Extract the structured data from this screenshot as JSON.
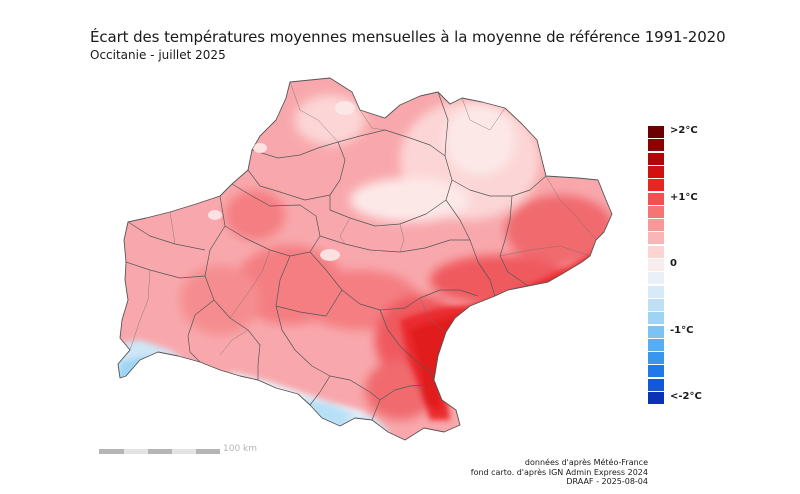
{
  "title": "Écart des températures moyennes mensuelles à la moyenne de référence 1991-2020",
  "subtitle": "Occitanie - juillet 2025",
  "legend": {
    "labels": [
      {
        "text": ">2°C",
        "step": 0
      },
      {
        "text": "+1°C",
        "step": 5
      },
      {
        "text": "0",
        "step": 10
      },
      {
        "text": "-1°C",
        "step": 15
      },
      {
        "text": "<-2°C",
        "step": 20
      }
    ],
    "colors": [
      "#6b0000",
      "#8e0000",
      "#b00606",
      "#d30f0f",
      "#ea2323",
      "#f35050",
      "#f57575",
      "#f89898",
      "#fab6b6",
      "#fcd4d4",
      "#f8ecec",
      "#e9f0f8",
      "#d6eaf8",
      "#bde0f6",
      "#9fd3f4",
      "#7cc2f2",
      "#55aef0",
      "#3896ec",
      "#2278e6",
      "#1458d6",
      "#0a33b4"
    ]
  },
  "scalebar": {
    "label": "100 km"
  },
  "source": {
    "line1": "données d'après Météo-France",
    "line2": "fond carto. d'après IGN Admin Express 2024",
    "line3": "DRAAF - 2025-08-04"
  },
  "map": {
    "region": "Occitanie",
    "palette": {
      "base": "#f8a8ac",
      "light": "#fcd6d6",
      "pale": "#fde8e8",
      "medium": "#f47e82",
      "strong": "#ef5a5f",
      "hot": "#ea2a2d",
      "core": "#e01d1f",
      "cool": "#e9f1fa",
      "blue": "#9dd6f4",
      "blue_deep": "#6cc4ef",
      "border": "#555555"
    }
  }
}
